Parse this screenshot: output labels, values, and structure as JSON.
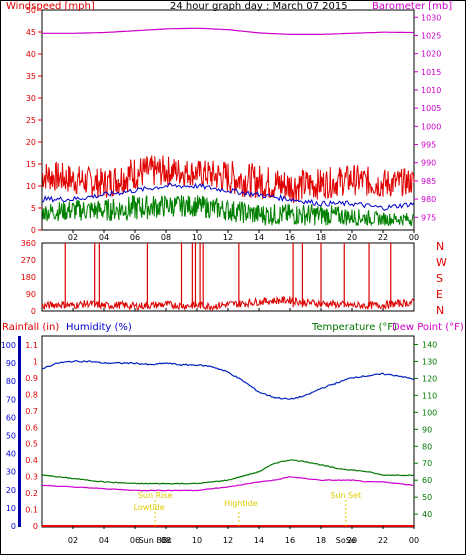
{
  "title": "24 hour graph day : March 07 2015",
  "colors": {
    "wind": "#e00000",
    "wind_avg": "#0000cc",
    "wind_green": "#008000",
    "baro": "#cc00cc",
    "dir": "#dd0000",
    "humidity": "#0022bb",
    "temperature": "#007700",
    "dewpoint": "#cc00cc",
    "rain": "#ee0000",
    "sun": "#ddcc00",
    "axis": "#000000",
    "grid": "#dddddd"
  },
  "x_ticks": [
    "02",
    "04",
    "06",
    "08",
    "10",
    "12",
    "14",
    "16",
    "18",
    "20",
    "22",
    "00"
  ],
  "chart_data": [
    {
      "type": "line",
      "name": "wind-baro",
      "left_label": "Windspeed [mph]",
      "right_label": "Barometer [mb]",
      "left_ticks": [
        "50",
        "45",
        "40",
        "35",
        "30",
        "25",
        "20",
        "15",
        "10",
        "5",
        "0"
      ],
      "right_ticks": [
        "1030",
        "1025",
        "1020",
        "1015",
        "1010",
        "1005",
        "1000",
        "995",
        "990",
        "985",
        "980",
        "975"
      ],
      "ylim_left": [
        0,
        50
      ],
      "ylim_right": [
        971.5,
        1032
      ],
      "wind_hi_band": [
        [
          0,
          9,
          16
        ],
        [
          2,
          8,
          15
        ],
        [
          4,
          7,
          14
        ],
        [
          6,
          9,
          17
        ],
        [
          8,
          10,
          17
        ],
        [
          10,
          10,
          16
        ],
        [
          12,
          8,
          16
        ],
        [
          14,
          7,
          15
        ],
        [
          16,
          6,
          14
        ],
        [
          18,
          7,
          14
        ],
        [
          20,
          8,
          15
        ],
        [
          22,
          7,
          14
        ],
        [
          24,
          8,
          14
        ]
      ],
      "wind_avg": [
        [
          0,
          7
        ],
        [
          2,
          7
        ],
        [
          4,
          8
        ],
        [
          6,
          9
        ],
        [
          8,
          10
        ],
        [
          10,
          10
        ],
        [
          12,
          9
        ],
        [
          14,
          8
        ],
        [
          16,
          7
        ],
        [
          18,
          6
        ],
        [
          20,
          6
        ],
        [
          22,
          5
        ],
        [
          24,
          6
        ]
      ],
      "wind_low_band": [
        [
          0,
          2,
          6
        ],
        [
          2,
          2,
          7
        ],
        [
          4,
          2,
          7
        ],
        [
          6,
          2,
          8
        ],
        [
          8,
          3,
          8
        ],
        [
          10,
          3,
          8
        ],
        [
          12,
          2,
          7
        ],
        [
          14,
          1,
          6
        ],
        [
          16,
          1,
          6
        ],
        [
          18,
          1,
          6
        ],
        [
          20,
          1,
          5
        ],
        [
          22,
          1,
          4
        ],
        [
          24,
          1,
          4
        ]
      ],
      "barometer": [
        [
          0,
          1025.6
        ],
        [
          2,
          1025.6
        ],
        [
          4,
          1025.8
        ],
        [
          6,
          1026.3
        ],
        [
          8,
          1026.8
        ],
        [
          10,
          1027.0
        ],
        [
          12,
          1026.6
        ],
        [
          14,
          1025.7
        ],
        [
          16,
          1025.3
        ],
        [
          18,
          1025.3
        ],
        [
          20,
          1025.6
        ],
        [
          22,
          1025.9
        ],
        [
          24,
          1025.8
        ]
      ]
    },
    {
      "type": "line",
      "name": "wind-direction",
      "left_ticks": [
        "360",
        "270",
        "180",
        "90",
        "0"
      ],
      "right_labels": [
        "N",
        "W",
        "S",
        "E",
        "N"
      ],
      "ylim": [
        0,
        360
      ],
      "direction": [
        [
          0,
          25
        ],
        [
          1,
          35
        ],
        [
          2,
          30
        ],
        [
          3,
          40
        ],
        [
          4,
          28
        ],
        [
          5,
          32
        ],
        [
          6,
          25
        ],
        [
          7,
          30
        ],
        [
          8,
          35
        ],
        [
          9,
          28
        ],
        [
          10,
          30
        ],
        [
          11,
          25
        ],
        [
          12,
          35
        ],
        [
          13,
          40
        ],
        [
          14,
          50
        ],
        [
          15,
          55
        ],
        [
          16,
          58
        ],
        [
          17,
          45
        ],
        [
          18,
          40
        ],
        [
          19,
          35
        ],
        [
          20,
          30
        ],
        [
          21,
          28
        ],
        [
          22,
          32
        ],
        [
          23,
          40
        ],
        [
          24,
          45
        ]
      ],
      "spikes": [
        1.5,
        3.4,
        3.7,
        6.8,
        9.0,
        9.7,
        9.9,
        10.2,
        10.4,
        12.7,
        16.2,
        16.8,
        18.0,
        19.5,
        21.1,
        22.5
      ]
    },
    {
      "type": "line",
      "name": "rain-humidity-temperature",
      "left_label": "Rainfall (in)",
      "humidity_label": "Humidity (%)",
      "temperature_label": "Temperature (°F)",
      "dewpoint_label": "Dew Point (°F)",
      "rain_ticks": [
        "1.1",
        "1",
        "0.9",
        "0.8",
        "0.7",
        "0.6",
        "0.5",
        "0.4",
        "0.3",
        "0.2",
        "0.1",
        "0"
      ],
      "humidity_ticks": [
        "100",
        "90",
        "80",
        "70",
        "60",
        "50",
        "40",
        "30",
        "20",
        "10",
        "0"
      ],
      "temp_ticks": [
        "140",
        "130",
        "120",
        "110",
        "100",
        "90",
        "80",
        "70",
        "60",
        "50",
        "40"
      ],
      "ylim_rain": [
        0,
        1.1
      ],
      "ylim_humidity": [
        0,
        100
      ],
      "ylim_temp": [
        33,
        145
      ],
      "humidity": [
        [
          0,
          87
        ],
        [
          1,
          90
        ],
        [
          2,
          91
        ],
        [
          3,
          91
        ],
        [
          4,
          90
        ],
        [
          5,
          90
        ],
        [
          6,
          90
        ],
        [
          7,
          89
        ],
        [
          8,
          90
        ],
        [
          9,
          89
        ],
        [
          10,
          89
        ],
        [
          11,
          88
        ],
        [
          12,
          85
        ],
        [
          13,
          80
        ],
        [
          14,
          74
        ],
        [
          15,
          71
        ],
        [
          16,
          70
        ],
        [
          17,
          72
        ],
        [
          18,
          76
        ],
        [
          19,
          79
        ],
        [
          20,
          82
        ],
        [
          21,
          83
        ],
        [
          22,
          84
        ],
        [
          23,
          83
        ],
        [
          24,
          81
        ]
      ],
      "temperature": [
        [
          0,
          63
        ],
        [
          2,
          61
        ],
        [
          4,
          59
        ],
        [
          6,
          58
        ],
        [
          8,
          58
        ],
        [
          10,
          58
        ],
        [
          12,
          60
        ],
        [
          14,
          65
        ],
        [
          15,
          70
        ],
        [
          16,
          72
        ],
        [
          17,
          71
        ],
        [
          18,
          69
        ],
        [
          19,
          67
        ],
        [
          20,
          66
        ],
        [
          21,
          65
        ],
        [
          22,
          63
        ],
        [
          23,
          63
        ],
        [
          24,
          63
        ]
      ],
      "dewpoint": [
        [
          0,
          57
        ],
        [
          2,
          56
        ],
        [
          4,
          55
        ],
        [
          6,
          54
        ],
        [
          8,
          54
        ],
        [
          10,
          54
        ],
        [
          12,
          56
        ],
        [
          14,
          59
        ],
        [
          15,
          60
        ],
        [
          16,
          62
        ],
        [
          17,
          61
        ],
        [
          18,
          60
        ],
        [
          19,
          60
        ],
        [
          20,
          60
        ],
        [
          21,
          59
        ],
        [
          22,
          59
        ],
        [
          23,
          58
        ],
        [
          24,
          57
        ]
      ],
      "rain": [
        [
          0,
          0
        ],
        [
          24,
          0
        ]
      ]
    }
  ],
  "sun_moon": {
    "sun_rise": "Sun Rise",
    "low_tide": "Lowtide",
    "high_tide": "Hightide",
    "sun_set": "Sun Set",
    "sun_bottom": "Sun BBc",
    "sun_set_bottom": "Sun Set",
    "extra_left": "18",
    "extra_right": "SoSe"
  }
}
